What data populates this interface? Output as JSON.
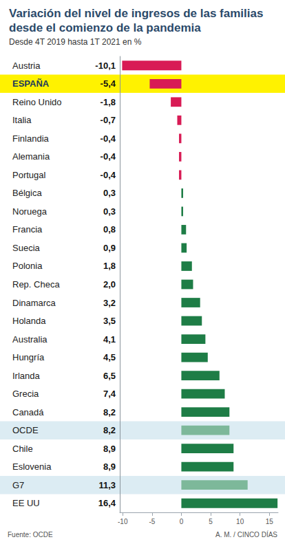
{
  "chart_data": {
    "type": "bar",
    "orientation": "horizontal",
    "title": "Variación del nivel de ingresos de las familias\ndesde el comienzo de la pandemia",
    "subtitle": "Desde 4T 2019 hasta 1T 2021 en %",
    "source": "Fuente: OCDE",
    "credit": "A. M. / CINCO DÍAS",
    "categories": [
      "Austria",
      "ESPAÑA",
      "Reino Unido",
      "Italia",
      "Finlandia",
      "Alemania",
      "Portugal",
      "Bélgica",
      "Noruega",
      "Francia",
      "Suecia",
      "Polonia",
      "Rep. Checa",
      "Dinamarca",
      "Holanda",
      "Australia",
      "Hungría",
      "Irlanda",
      "Grecia",
      "Canadá",
      "OCDE",
      "Chile",
      "Eslovenia",
      "G7",
      "EE UU"
    ],
    "values": [
      -10.1,
      -5.4,
      -1.8,
      -0.7,
      -0.4,
      -0.4,
      -0.4,
      0.3,
      0.3,
      0.8,
      0.9,
      1.8,
      2.0,
      3.2,
      3.5,
      4.1,
      4.5,
      6.5,
      7.4,
      8.2,
      8.2,
      8.9,
      8.9,
      11.3,
      16.4
    ],
    "value_labels": [
      "-10,1",
      "-5,4",
      "-1,8",
      "-0,7",
      "-0,4",
      "-0,4",
      "-0,4",
      "0,3",
      "0,3",
      "0,8",
      "0,9",
      "1,8",
      "2,0",
      "3,2",
      "3,5",
      "4,1",
      "4,5",
      "6,5",
      "7,4",
      "8,2",
      "8,2",
      "8,9",
      "8,9",
      "11,3",
      "16,4"
    ],
    "colors": [
      "#d81b55",
      "#d81b55",
      "#d81b55",
      "#d81b55",
      "#d81b55",
      "#d81b55",
      "#d81b55",
      "#1e7d46",
      "#1e7d46",
      "#1e7d46",
      "#1e7d46",
      "#1e7d46",
      "#1e7d46",
      "#1e7d46",
      "#1e7d46",
      "#1e7d46",
      "#1e7d46",
      "#1e7d46",
      "#1e7d46",
      "#1e7d46",
      "#7db89a",
      "#1e7d46",
      "#1e7d46",
      "#7db89a",
      "#1e7d46"
    ],
    "data_labels": true,
    "xlim": [
      -10.5,
      16.5
    ],
    "xticks": [
      -10,
      -5,
      0,
      5,
      10,
      15
    ],
    "grid": false
  }
}
